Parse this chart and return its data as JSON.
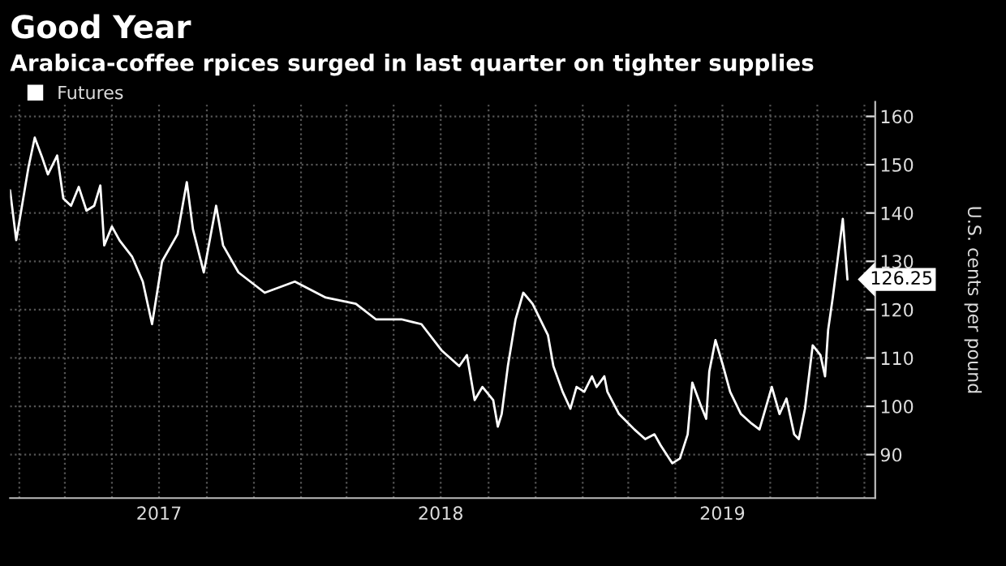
{
  "chart_data": {
    "type": "line",
    "title": "Good Year",
    "subtitle": "Arabica-coffee rpices surged in last quarter on tighter supplies",
    "ylabel": "U.S. cents per pound",
    "series": [
      {
        "name": "Futures",
        "color": "#ffffff",
        "x": [
          "2016-12-20",
          "2016-12-28",
          "2017-01-13",
          "2017-01-21",
          "2017-01-31",
          "2017-02-07",
          "2017-02-19",
          "2017-02-27",
          "2017-03-09",
          "2017-03-19",
          "2017-03-29",
          "2017-04-08",
          "2017-04-16",
          "2017-04-21",
          "2017-05-01",
          "2017-05-11",
          "2017-05-27",
          "2017-06-10",
          "2017-06-22",
          "2017-07-05",
          "2017-07-25",
          "2017-08-06",
          "2017-08-14",
          "2017-08-28",
          "2017-09-13",
          "2017-09-22",
          "2017-10-12",
          "2017-11-15",
          "2017-12-24",
          "2018-02-02",
          "2018-03-13",
          "2018-04-08",
          "2018-05-11",
          "2018-06-06",
          "2018-07-02",
          "2018-07-25",
          "2018-08-04",
          "2018-08-14",
          "2018-08-24",
          "2018-09-07",
          "2018-09-13",
          "2018-09-18",
          "2018-09-26",
          "2018-10-06",
          "2018-10-16",
          "2018-10-28",
          "2018-11-17",
          "2018-11-24",
          "2018-12-06",
          "2018-12-16",
          "2018-12-24",
          "2019-01-03",
          "2019-01-13",
          "2019-01-19",
          "2019-01-29",
          "2019-02-02",
          "2019-02-17",
          "2019-03-09",
          "2019-03-23",
          "2019-04-04",
          "2019-04-12",
          "2019-04-27",
          "2019-05-07",
          "2019-05-17",
          "2019-05-23",
          "2019-06-02",
          "2019-06-10",
          "2019-06-14",
          "2019-06-22",
          "2019-07-02",
          "2019-07-11",
          "2019-07-25",
          "2019-08-08",
          "2019-08-18",
          "2019-09-03",
          "2019-09-13",
          "2019-09-22",
          "2019-10-02",
          "2019-10-08",
          "2019-10-16",
          "2019-10-26",
          "2019-11-05",
          "2019-11-11",
          "2019-11-15",
          "2019-11-21",
          "2019-11-27",
          "2019-12-04",
          "2019-12-10"
        ],
        "values": [
          144.7,
          134.4,
          149.6,
          155.6,
          151.3,
          148,
          151.9,
          143,
          141.5,
          145.4,
          140.5,
          141.5,
          145.7,
          133.3,
          137.2,
          134.3,
          131,
          125.8,
          117,
          130,
          135.6,
          146.4,
          136.6,
          127.7,
          141.5,
          133.3,
          127.7,
          123.5,
          125.8,
          122.5,
          121.2,
          118,
          118,
          117,
          111.6,
          108.3,
          110.6,
          101.3,
          104,
          101.3,
          95.8,
          98.4,
          108.3,
          118,
          123.5,
          121.2,
          114.7,
          108.3,
          103,
          99.5,
          104,
          103,
          106.2,
          104,
          106.2,
          103,
          98.4,
          95.2,
          93.2,
          94.2,
          91.9,
          88.2,
          89.2,
          94.2,
          104.9,
          100.6,
          97.4,
          107.2,
          113.7,
          108.3,
          103,
          98.4,
          96.4,
          95.2,
          104,
          98.4,
          101.6,
          94.2,
          93.2,
          99.5,
          112.6,
          110.6,
          106.2,
          115.8,
          122.5,
          130,
          138.8,
          126.25
        ]
      }
    ],
    "annotations": [
      {
        "text": "126.25",
        "x": "2019-12-10",
        "y": 126.25
      }
    ],
    "xlim": [
      "2016-12-20",
      "2020-01-15"
    ],
    "xticks": [
      {
        "value": "2017-01-01",
        "label": null
      },
      {
        "value": "2017-03-01",
        "label": null
      },
      {
        "value": "2017-05-01",
        "label": null
      },
      {
        "value": "2017-07-01",
        "label": "2017"
      },
      {
        "value": "2017-09-01",
        "label": null
      },
      {
        "value": "2017-11-01",
        "label": null
      },
      {
        "value": "2018-01-01",
        "label": null
      },
      {
        "value": "2018-03-01",
        "label": null
      },
      {
        "value": "2018-05-01",
        "label": null
      },
      {
        "value": "2018-07-01",
        "label": "2018"
      },
      {
        "value": "2018-09-01",
        "label": null
      },
      {
        "value": "2018-11-01",
        "label": null
      },
      {
        "value": "2019-01-01",
        "label": null
      },
      {
        "value": "2019-03-01",
        "label": null
      },
      {
        "value": "2019-05-01",
        "label": null
      },
      {
        "value": "2019-07-01",
        "label": "2019"
      },
      {
        "value": "2019-09-01",
        "label": null
      },
      {
        "value": "2019-11-01",
        "label": null
      },
      {
        "value": "2020-01-01",
        "label": null
      }
    ],
    "ylim": [
      81,
      163
    ],
    "yticks": [
      90,
      100,
      110,
      120,
      130,
      140,
      150,
      160
    ],
    "grid": true,
    "legend": "top left",
    "marker": "none",
    "line_style": "solid"
  }
}
